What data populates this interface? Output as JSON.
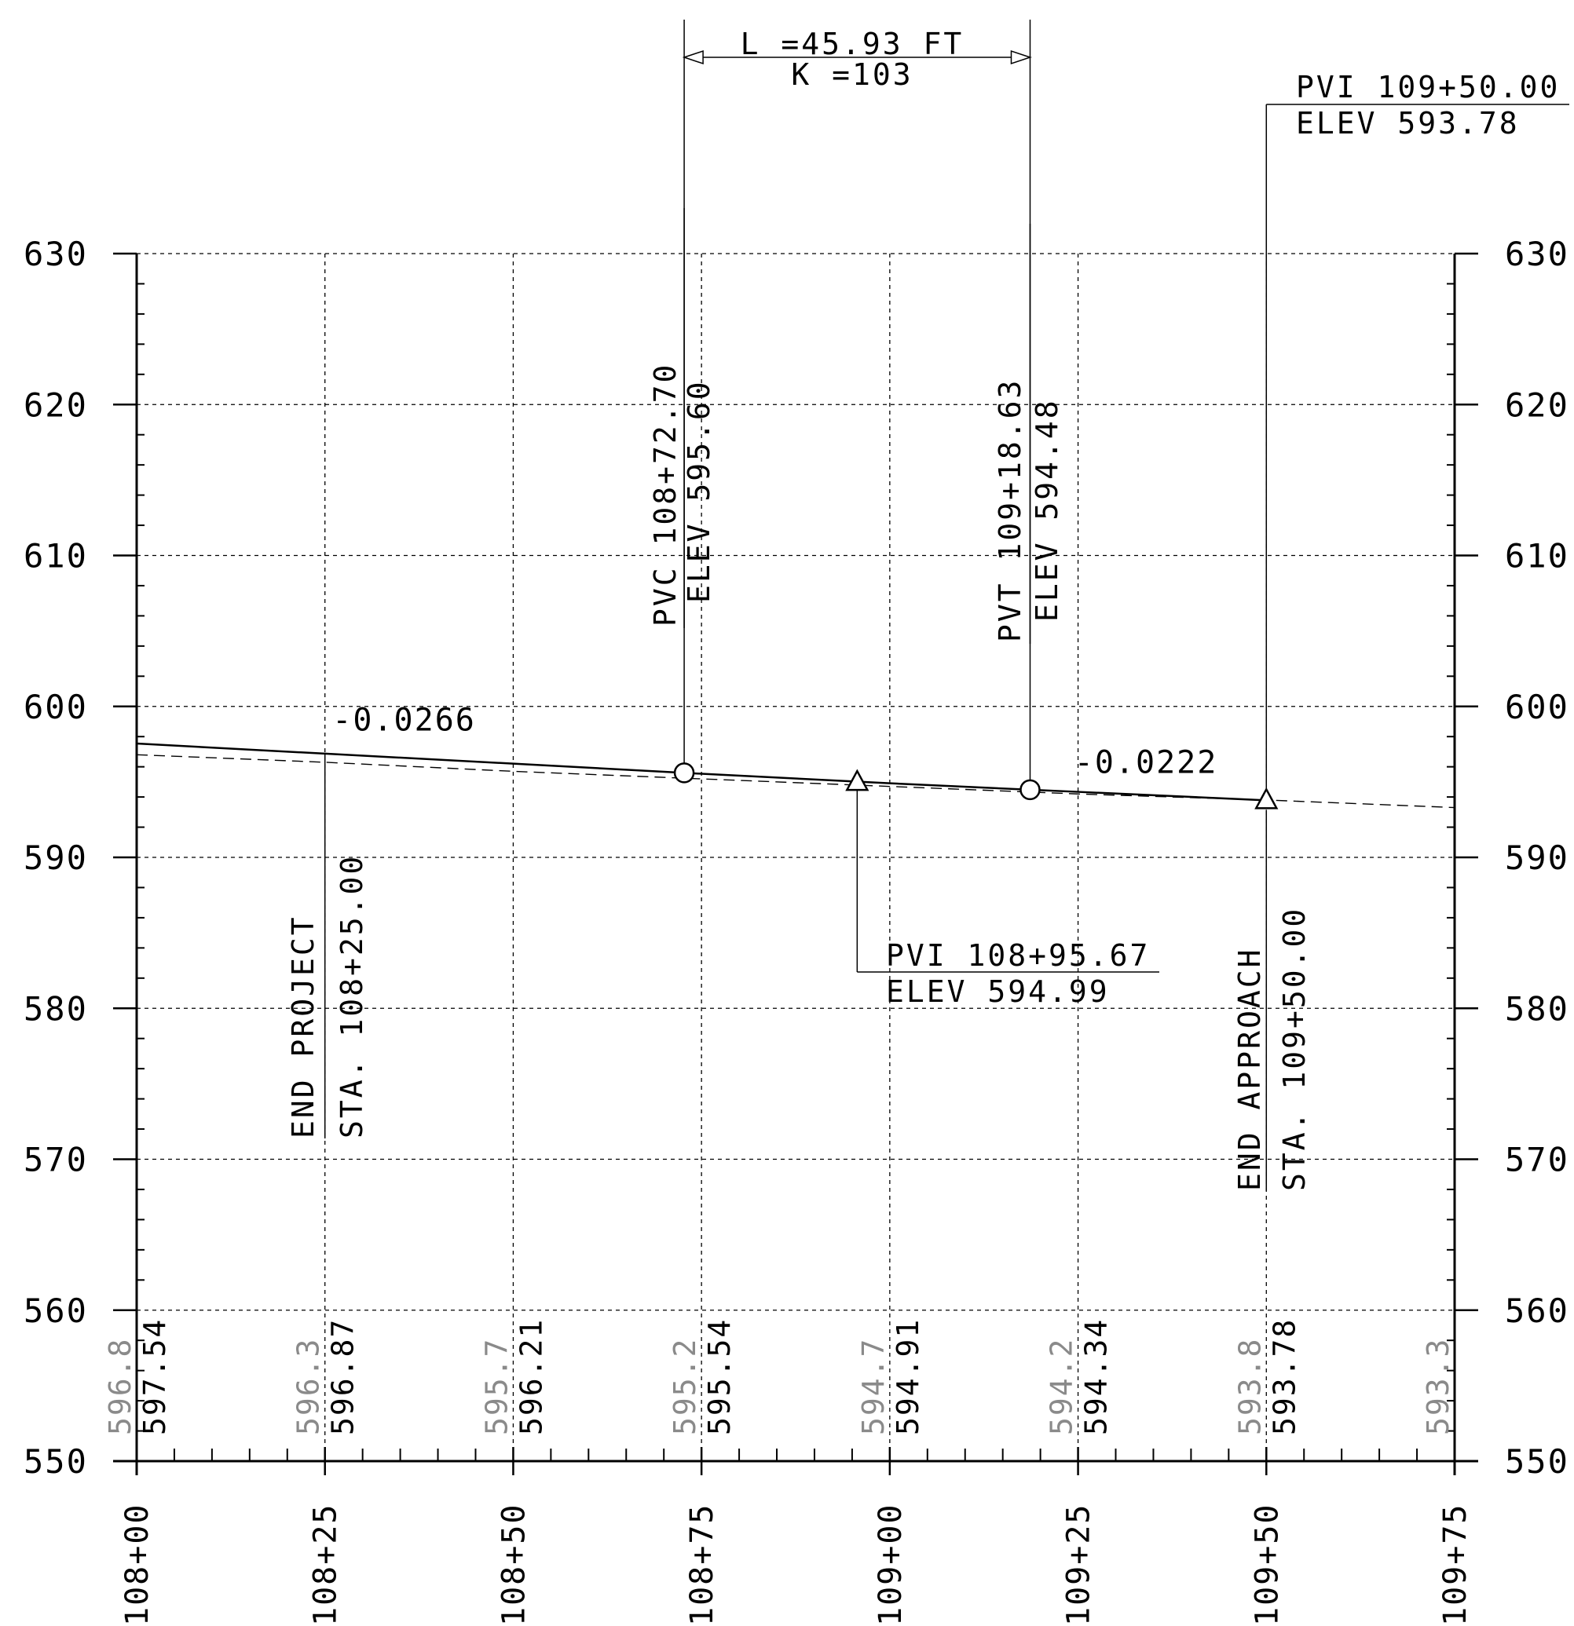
{
  "chart_data": {
    "type": "line",
    "title": "",
    "xlabel": "",
    "ylabel": "",
    "xlim": [
      10800,
      10975
    ],
    "ylim": [
      550,
      630
    ],
    "y_ticks": [
      {
        "value": 630,
        "label": "630"
      },
      {
        "value": 620,
        "label": "620"
      },
      {
        "value": 610,
        "label": "610"
      },
      {
        "value": 600,
        "label": "600"
      },
      {
        "value": 590,
        "label": "590"
      },
      {
        "value": 580,
        "label": "580"
      },
      {
        "value": 570,
        "label": "570"
      },
      {
        "value": 560,
        "label": "560"
      },
      {
        "value": 550,
        "label": "550"
      }
    ],
    "x_ticks": [
      {
        "value": 10800,
        "label": "108+00"
      },
      {
        "value": 10825,
        "label": "108+25"
      },
      {
        "value": 10850,
        "label": "108+50"
      },
      {
        "value": 10875,
        "label": "108+75"
      },
      {
        "value": 10900,
        "label": "109+00"
      },
      {
        "value": 10925,
        "label": "109+25"
      },
      {
        "value": 10950,
        "label": "109+50"
      },
      {
        "value": 10975,
        "label": "109+75"
      }
    ],
    "series": [
      {
        "name": "",
        "style": "solid",
        "points": [
          {
            "x": 10800,
            "y": 597.54
          },
          {
            "x": 10825,
            "y": 596.87
          },
          {
            "x": 10850,
            "y": 596.21
          },
          {
            "x": 10872.7,
            "y": 595.6
          },
          {
            "x": 10875,
            "y": 595.54
          },
          {
            "x": 10900,
            "y": 594.91
          },
          {
            "x": 10918.63,
            "y": 594.48
          },
          {
            "x": 10925,
            "y": 594.34
          },
          {
            "x": 10950,
            "y": 593.78
          }
        ]
      },
      {
        "name": "",
        "style": "dashed",
        "points": [
          {
            "x": 10800,
            "y": 596.8
          },
          {
            "x": 10825,
            "y": 596.3
          },
          {
            "x": 10850,
            "y": 595.7
          },
          {
            "x": 10875,
            "y": 595.2
          },
          {
            "x": 10900,
            "y": 594.7
          },
          {
            "x": 10925,
            "y": 594.2
          },
          {
            "x": 10950,
            "y": 593.8
          },
          {
            "x": 10975,
            "y": 593.3
          }
        ]
      }
    ],
    "bottom_labels": [
      {
        "x": 10800,
        "existing": "596.8",
        "proposed": "597.54"
      },
      {
        "x": 10825,
        "existing": "596.3",
        "proposed": "596.87"
      },
      {
        "x": 10850,
        "existing": "595.7",
        "proposed": "596.21"
      },
      {
        "x": 10875,
        "existing": "595.2",
        "proposed": "595.54"
      },
      {
        "x": 10900,
        "existing": "594.7",
        "proposed": "594.91"
      },
      {
        "x": 10925,
        "existing": "594.2",
        "proposed": "594.34"
      },
      {
        "x": 10950,
        "existing": "593.8",
        "proposed": "593.78"
      },
      {
        "x": 10975,
        "existing": "593.3",
        "proposed": ""
      }
    ],
    "grades": [
      {
        "x": 10826,
        "y": 598.4,
        "label": "-0.0266"
      },
      {
        "x": 10924.5,
        "y": 595.6,
        "label": "-0.0222"
      }
    ],
    "curve_points": [
      {
        "type": "circle",
        "x": 10872.7,
        "y": 595.6
      },
      {
        "type": "circle",
        "x": 10918.63,
        "y": 594.48
      },
      {
        "type": "triangle",
        "x": 10895.67,
        "y": 594.99
      },
      {
        "type": "triangle",
        "x": 10950,
        "y": 593.78
      }
    ],
    "vertical_curve": {
      "length_label": "L =45.93 FT",
      "k_label": "K =103"
    },
    "annotations": {
      "pvc_station": "PVC 108+72.70",
      "pvc_elev": "ELEV 595.60",
      "pvt_station": "PVT 109+18.63",
      "pvt_elev": "ELEV 594.48",
      "pvi_top_station": "PVI 109+50.00",
      "pvi_top_elev": "ELEV 593.78",
      "pvi_mid_station": "PVI 108+95.67",
      "pvi_mid_elev": "ELEV 594.99",
      "end_project": "END PROJECT",
      "end_project_sta": "STA. 108+25.00",
      "end_approach": "END APPROACH",
      "end_approach_sta": "STA. 109+50.00"
    }
  }
}
